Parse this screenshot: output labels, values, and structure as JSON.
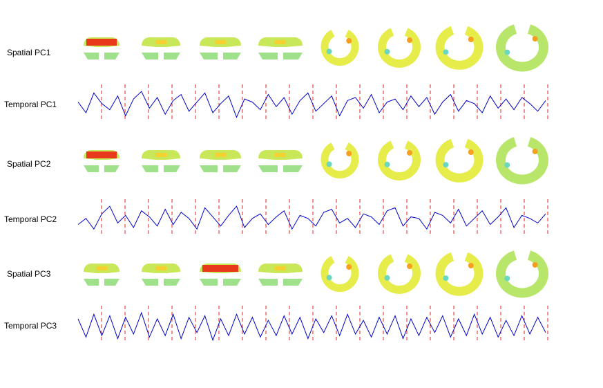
{
  "rows": [
    {
      "label": "Spatial PC1"
    },
    {
      "label": "Temporal PC1",
      "signal": [
        0.2,
        -0.5,
        0.8,
        0.1,
        -0.3,
        0.6,
        -0.7,
        0.4,
        0.9,
        -0.2,
        0.5,
        -0.6,
        0.3,
        0.7,
        -0.4,
        0.2,
        0.8,
        -0.5,
        0.1,
        0.6,
        -0.8,
        0.4,
        0.2,
        -0.3,
        0.7,
        -0.1,
        0.5,
        -0.6,
        0.3,
        0.8,
        -0.4,
        0.1,
        0.6,
        -0.7,
        0.3,
        0.5,
        -0.2,
        0.7,
        -0.5,
        0.2,
        0.4,
        -0.3,
        0.6,
        -0.1,
        0.5,
        -0.6,
        0.2,
        0.7,
        -0.4,
        0.3,
        0.1,
        -0.5,
        0.6,
        -0.2,
        0.4,
        -0.3,
        0.5,
        0.1,
        -0.4,
        0.3
      ]
    },
    {
      "label": "Spatial PC2"
    },
    {
      "label": "Temporal PC2",
      "signal": [
        -0.3,
        0.1,
        -0.6,
        0.4,
        0.9,
        -0.2,
        0.3,
        -0.5,
        0.6,
        0.2,
        -0.4,
        0.7,
        -0.3,
        0.5,
        0.1,
        -0.6,
        0.8,
        0.2,
        -0.4,
        0.3,
        0.9,
        -0.5,
        0.1,
        0.4,
        -0.3,
        0.2,
        0.6,
        -0.6,
        0.3,
        0.1,
        -0.4,
        0.5,
        0.7,
        -0.2,
        0.1,
        -0.5,
        0.4,
        0.2,
        -0.3,
        0.6,
        0.8,
        -0.4,
        0.2,
        0.1,
        -0.6,
        0.5,
        0.3,
        -0.2,
        0.7,
        -0.4,
        0.1,
        0.6,
        -0.3,
        0.2,
        0.8,
        -0.5,
        0.3,
        0.1,
        -0.2,
        0.4
      ]
    },
    {
      "label": "Spatial PC3"
    },
    {
      "label": "Temporal PC3",
      "signal": [
        0.5,
        -0.7,
        0.8,
        -0.6,
        0.7,
        -0.8,
        0.6,
        -0.5,
        0.9,
        -0.7,
        0.5,
        -0.6,
        0.8,
        -0.8,
        0.6,
        -0.4,
        0.7,
        -0.9,
        0.5,
        -0.6,
        0.8,
        -0.5,
        0.6,
        -0.7,
        0.4,
        -0.6,
        0.7,
        -0.5,
        0.6,
        -0.8,
        0.5,
        -0.4,
        0.7,
        -0.6,
        0.8,
        -0.5,
        0.4,
        -0.7,
        0.6,
        -0.5,
        0.7,
        -0.8,
        0.5,
        -0.6,
        0.6,
        -0.4,
        0.7,
        -0.7,
        0.5,
        -0.6,
        0.8,
        -0.5,
        0.6,
        -0.7,
        0.4,
        -0.6,
        0.7,
        -0.5,
        0.6,
        -0.4
      ]
    }
  ]
}
